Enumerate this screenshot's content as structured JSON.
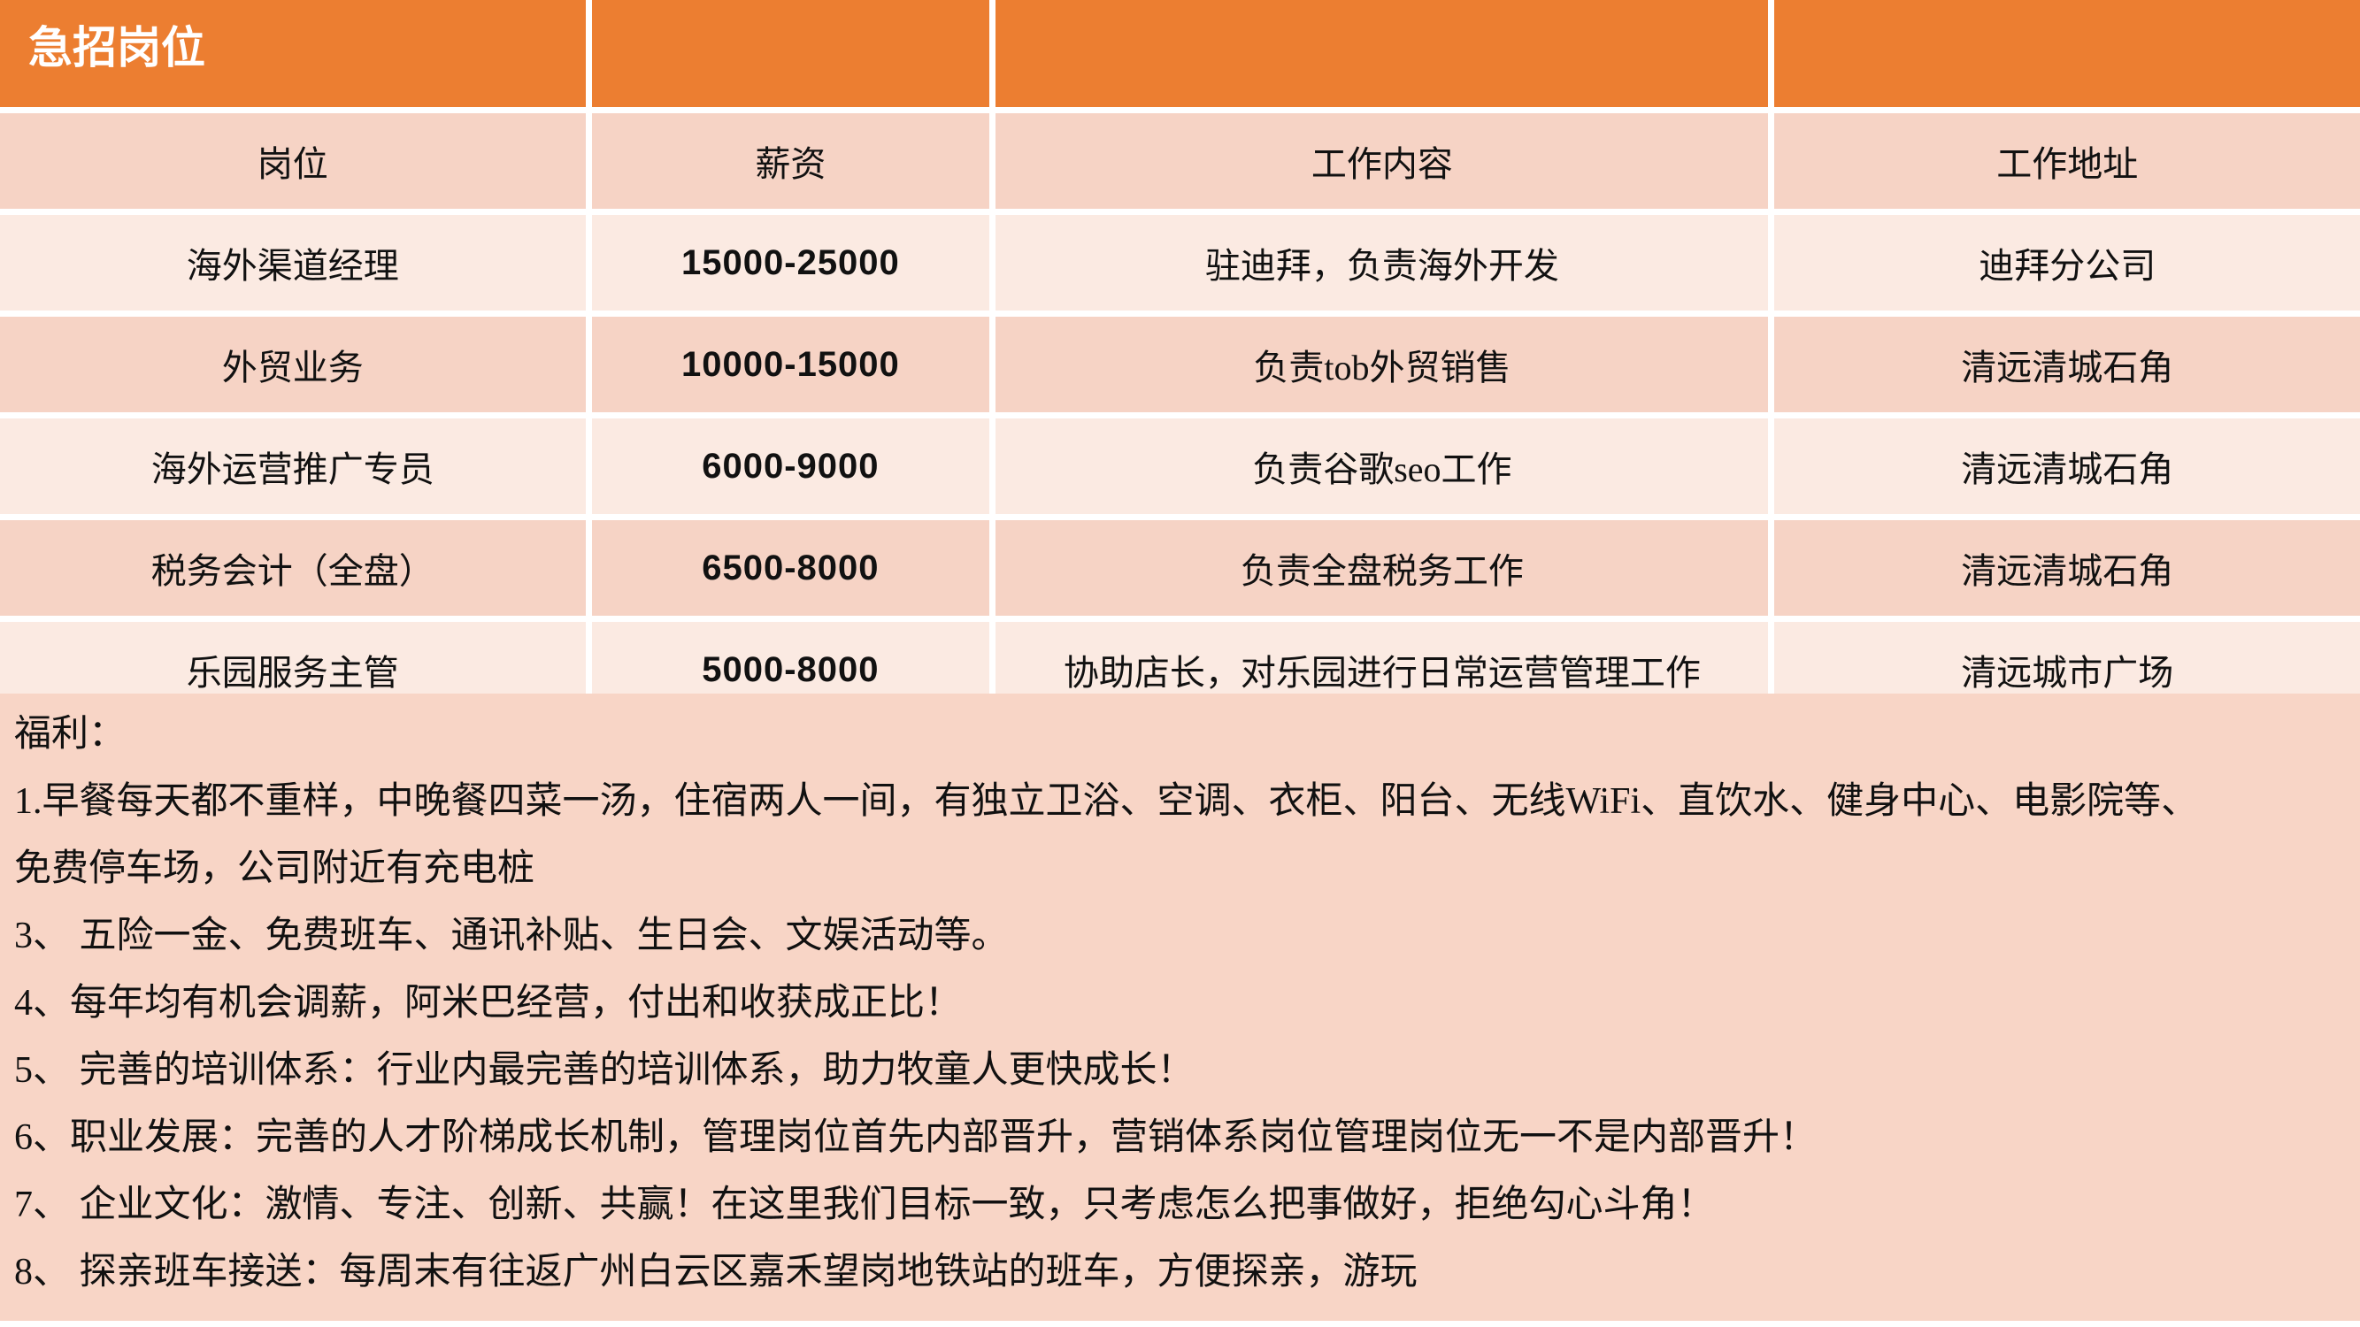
{
  "title": "急招岗位",
  "table": {
    "headers": [
      "岗位",
      "薪资",
      "工作内容",
      "工作地址"
    ],
    "rows": [
      {
        "position": "海外渠道经理",
        "salary": "15000-25000",
        "content": "驻迪拜，负责海外开发",
        "address": "迪拜分公司"
      },
      {
        "position": "外贸业务",
        "salary": "10000-15000",
        "content": "负责tob外贸销售",
        "address": "清远清城石角"
      },
      {
        "position": "海外运营推广专员",
        "salary": "6000-9000",
        "content": "负责谷歌seo工作",
        "address": "清远清城石角"
      },
      {
        "position": "税务会计（全盘）",
        "salary": "6500-8000",
        "content": "负责全盘税务工作",
        "address": "清远清城石角"
      },
      {
        "position": "乐园服务主管",
        "salary": "5000-8000",
        "content": "协助店长，对乐园进行日常运营管理工作",
        "address": "清远城市广场"
      }
    ]
  },
  "benefits": {
    "lines": [
      "福利：",
      "1.早餐每天都不重样，中晚餐四菜一汤，住宿两人一间，有独立卫浴、空调、衣柜、阳台、无线WiFi、直饮水、健身中心、电影院等、",
      "免费停车场，公司附近有充电桩",
      "3、 五险一金、免费班车、通讯补贴、生日会、文娱活动等。",
      "4、每年均有机会调薪，阿米巴经营，付出和收获成正比！",
      "5、 完善的培训体系：行业内最完善的培训体系，助力牧童人更快成长！",
      "6、职业发展：完善的人才阶梯成长机制，管理岗位首先内部晋升，营销体系岗位管理岗位无一不是内部晋升！",
      "7、 企业文化：激情、专注、创新、共赢！在这里我们目标一致，只考虑怎么把事做好，拒绝勾心斗角！",
      "8、 探亲班车接送：每周末有往返广州白云区嘉禾望岗地铁站的班车，方便探亲，游玩"
    ]
  },
  "colors": {
    "header_orange": "#EC7E31",
    "band_dark_pink": "#F6D3C5",
    "band_light_pink": "#FBEAE2",
    "benefits_background": "#F8D5C6",
    "title_text": "#FFFFFF",
    "body_text": "#111111"
  }
}
